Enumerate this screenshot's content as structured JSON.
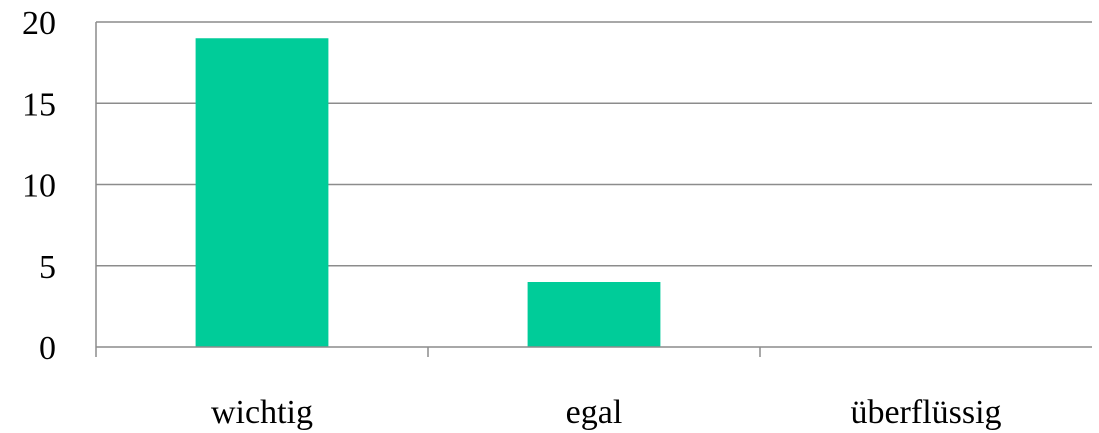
{
  "chart_data": {
    "type": "bar",
    "title": "",
    "xlabel": "",
    "ylabel": "",
    "categories": [
      "wichtig",
      "egal",
      "überflüssig"
    ],
    "values": [
      19,
      4,
      0
    ],
    "ylim": [
      0,
      20
    ],
    "yticks": [
      "0",
      "5",
      "10",
      "15",
      "20"
    ],
    "grid": true,
    "legend": "none",
    "colors": {
      "bar": "#00CC99",
      "grid": "#8c8c8c",
      "axis": "#8c8c8c"
    }
  }
}
